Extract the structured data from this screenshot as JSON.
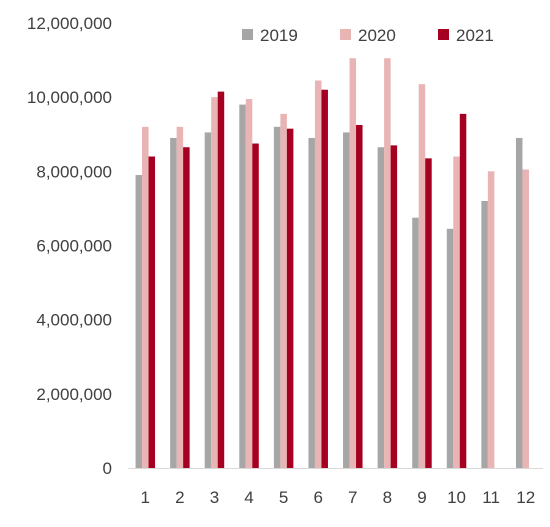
{
  "chart_data": {
    "type": "bar",
    "categories": [
      "1",
      "2",
      "3",
      "4",
      "5",
      "6",
      "7",
      "8",
      "9",
      "10",
      "11",
      "12"
    ],
    "series": [
      {
        "name": "2019",
        "color": "#a6a6a6",
        "values": [
          7900000,
          8900000,
          9050000,
          9800000,
          9200000,
          8900000,
          9050000,
          8650000,
          6750000,
          6450000,
          7200000,
          8900000
        ]
      },
      {
        "name": "2020",
        "color": "#e8b4b4",
        "values": [
          9200000,
          9200000,
          10000000,
          9950000,
          9550000,
          10450000,
          11050000,
          11050000,
          10350000,
          8400000,
          8000000,
          8050000
        ]
      },
      {
        "name": "2021",
        "color": "#a50021",
        "values": [
          8400000,
          8650000,
          10150000,
          8750000,
          9150000,
          10200000,
          9250000,
          8700000,
          8350000,
          9550000,
          null,
          null
        ]
      }
    ],
    "ylim": [
      0,
      12000000
    ],
    "yticks": [
      0,
      2000000,
      4000000,
      6000000,
      8000000,
      10000000,
      12000000
    ],
    "ytick_labels": [
      "0",
      "2,000,000",
      "4,000,000",
      "6,000,000",
      "8,000,000",
      "10,000,000",
      "12,000,000"
    ],
    "title": "",
    "xlabel": "",
    "ylabel": "",
    "grid": false,
    "legend_position": "top-right",
    "axis_color": "#d9d9d9",
    "text_color": "#404040"
  }
}
